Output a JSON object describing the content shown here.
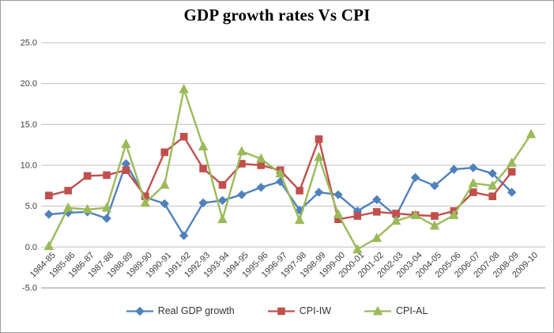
{
  "chart_data": {
    "type": "line",
    "title": "GDP growth rates Vs CPI",
    "xlabel": "",
    "ylabel": "",
    "grid": true,
    "legend_position": "bottom",
    "categories": [
      "1984-85",
      "1985-86",
      "1986-87",
      "1987-88",
      "1988-89",
      "1989-90",
      "1990-91",
      "1991-92",
      "1992-93",
      "1993-94",
      "1994-95",
      "1995-96",
      "1996-97",
      "1997-98",
      "1998-99",
      "1999-00",
      "2000-01",
      "2001-02",
      "2002-03",
      "2003-04",
      "2004-05",
      "2005-06",
      "2006-07",
      "2007-08",
      "2008-09",
      "2009-10"
    ],
    "series": [
      {
        "name": "Real GDP growth",
        "color": "#4F81BD",
        "marker": "diamond",
        "values": [
          4.0,
          4.2,
          4.3,
          3.5,
          10.2,
          6.1,
          5.3,
          1.4,
          5.4,
          5.7,
          6.4,
          7.3,
          8.0,
          4.5,
          6.7,
          6.4,
          4.4,
          5.8,
          3.8,
          8.5,
          7.5,
          9.5,
          9.7,
          9.0,
          6.7,
          null
        ]
      },
      {
        "name": "CPI-IW",
        "color": "#C0504D",
        "marker": "square",
        "values": [
          6.3,
          6.9,
          8.7,
          8.8,
          9.4,
          6.2,
          11.6,
          13.5,
          9.6,
          7.6,
          10.2,
          10.0,
          9.4,
          6.9,
          13.2,
          3.4,
          3.8,
          4.3,
          4.1,
          3.9,
          3.8,
          4.4,
          6.7,
          6.2,
          9.2,
          null
        ]
      },
      {
        "name": "CPI-AL",
        "color": "#9BBB59",
        "marker": "triangle",
        "values": [
          0.1,
          4.8,
          4.6,
          4.8,
          12.6,
          5.4,
          7.6,
          19.3,
          12.3,
          3.4,
          11.7,
          10.8,
          9.0,
          3.3,
          11.0,
          4.0,
          -0.3,
          1.1,
          3.2,
          3.9,
          2.6,
          3.9,
          7.8,
          7.5,
          10.3,
          13.8
        ]
      }
    ],
    "y_axis": {
      "min": -5,
      "max": 25,
      "step": 5,
      "ticks": [
        25,
        20,
        15,
        10,
        5,
        0,
        -5
      ],
      "tick_labels": [
        "25.0",
        "20.0",
        "15.0",
        "10.0",
        "5.0",
        "0.0",
        "-5.0"
      ]
    },
    "style": {
      "gridline_color": "#BFBFBF",
      "axis_line_color": "#8F8F8F",
      "tick_text_color": "#3F3F3F",
      "title_color": "#000000",
      "frame_border_color": "#9D9D9D",
      "background_color": "#FFFFFF"
    }
  }
}
